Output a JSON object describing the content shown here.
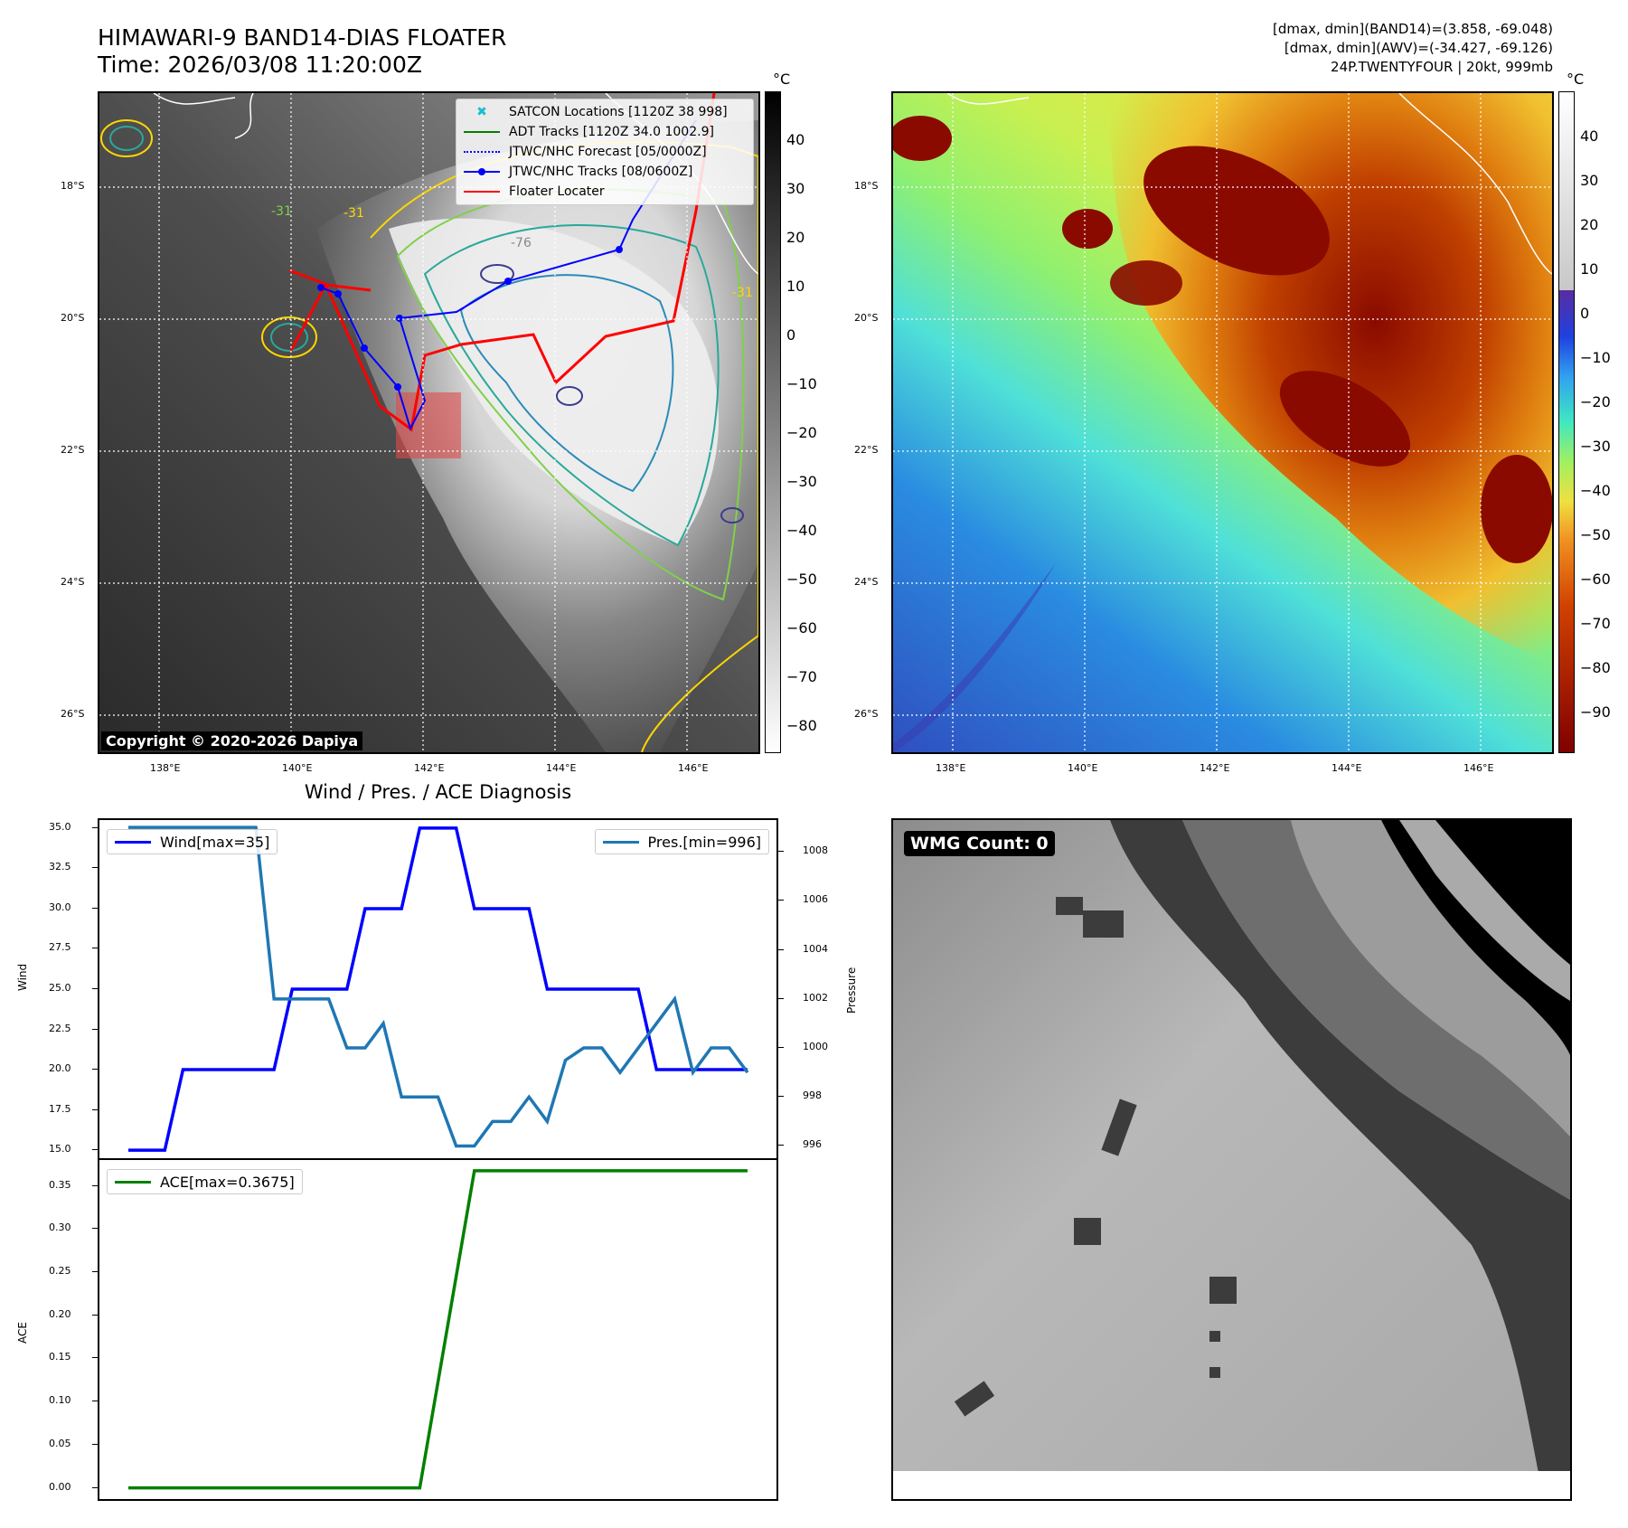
{
  "header": {
    "title_line1": "HIMAWARI-9 BAND14-DIAS FLOATER",
    "title_line2": "Time: 2026/03/08 11:20:00Z",
    "right_line1": "[dmax, dmin](BAND14)=(3.858, -69.048)",
    "right_line2": "[dmax, dmin](AWV)=(-34.427, -69.126)",
    "right_line3": "24P.TWENTYFOUR | 20kt, 999mb"
  },
  "maps": {
    "lat_ticks": [
      "18°S",
      "20°S",
      "22°S",
      "24°S",
      "26°S"
    ],
    "lon_ticks": [
      "138°E",
      "140°E",
      "142°E",
      "144°E",
      "146°E"
    ],
    "lat_values": [
      -18,
      -20,
      -22,
      -24,
      -26
    ],
    "lon_values": [
      138,
      140,
      142,
      144,
      146
    ],
    "lon_range": [
      137.1,
      147.1
    ],
    "lat_range": [
      -16.6,
      -26.6
    ],
    "copyright": "Copyright © 2020-2026 Dapiya",
    "unit": "°C",
    "left_colorbar_ticks": [
      "40",
      "30",
      "20",
      "10",
      "0",
      "−10",
      "−20",
      "−30",
      "−40",
      "−50",
      "−60",
      "−70",
      "−80"
    ],
    "right_colorbar_ticks": [
      "40",
      "30",
      "20",
      "10",
      "0",
      "−10",
      "−20",
      "−30",
      "−40",
      "−50",
      "−60",
      "−70",
      "−80",
      "−90"
    ],
    "contour_labels": [
      "-31",
      "-31",
      "-76",
      "-31"
    ],
    "legend": [
      {
        "label": "SATCON Locations [1120Z 38 998]",
        "color": "#17becf",
        "style": "x-marker"
      },
      {
        "label": "ADT Tracks [1120Z 34.0 1002.9]",
        "color": "#008000",
        "style": "solid"
      },
      {
        "label": "JTWC/NHC Forecast [05/0000Z]",
        "color": "#0000ff",
        "style": "dotted"
      },
      {
        "label": "JTWC/NHC Tracks [08/0600Z]",
        "color": "#0000ff",
        "style": "solid-dot"
      },
      {
        "label": "Floater Locater",
        "color": "#ff0000",
        "style": "solid"
      }
    ]
  },
  "chart_data": [
    {
      "type": "line",
      "title": "Wind / Pres. / ACE Diagnosis",
      "ylabel": "Wind",
      "y2label": "Pressure",
      "ylim": [
        14.5,
        35.5
      ],
      "y2lim": [
        995.5,
        1009.3
      ],
      "yticks": [
        "35.0",
        "32.5",
        "30.0",
        "27.5",
        "25.0",
        "22.5",
        "20.0",
        "17.5",
        "15.0"
      ],
      "y2ticks": [
        "1008",
        "1006",
        "1004",
        "1002",
        "1000",
        "998",
        "996"
      ],
      "series": [
        {
          "name": "Wind[max=35]",
          "color": "#0000ff",
          "values": [
            15,
            15,
            15,
            20,
            20,
            20,
            20,
            20,
            20,
            25,
            25,
            25,
            25,
            30,
            30,
            30,
            35,
            35,
            35,
            30,
            30,
            30,
            30,
            25,
            25,
            25,
            25,
            25,
            25,
            20,
            20,
            20,
            20,
            20,
            20
          ]
        },
        {
          "name": "Pres.[min=996]",
          "color": "#1f77b4",
          "values": [
            1009,
            1009,
            1009,
            1009,
            1009,
            1009,
            1009,
            1009,
            1002,
            1002,
            1002,
            1002,
            1000,
            1000,
            1001,
            998,
            998,
            998,
            996,
            996,
            997,
            997,
            998,
            997,
            999.5,
            1000,
            1000,
            999,
            1000,
            1001,
            1002,
            999,
            1000,
            1000,
            999
          ]
        }
      ]
    },
    {
      "type": "line",
      "ylabel": "ACE",
      "ylim": [
        -0.013,
        0.38
      ],
      "yticks": [
        "0.35",
        "0.30",
        "0.25",
        "0.20",
        "0.15",
        "0.10",
        "0.05",
        "0.00"
      ],
      "series": [
        {
          "name": "ACE[max=0.3675]",
          "color": "#008000",
          "values": [
            0,
            0,
            0,
            0,
            0,
            0,
            0,
            0,
            0,
            0,
            0,
            0,
            0,
            0,
            0,
            0,
            0,
            0.1225,
            0.245,
            0.3675,
            0.3675,
            0.3675,
            0.3675,
            0.3675,
            0.3675,
            0.3675,
            0.3675,
            0.3675,
            0.3675,
            0.3675,
            0.3675,
            0.3675,
            0.3675,
            0.3675,
            0.3675
          ]
        }
      ]
    }
  ],
  "wmg": {
    "label": "WMG Count: 0"
  }
}
